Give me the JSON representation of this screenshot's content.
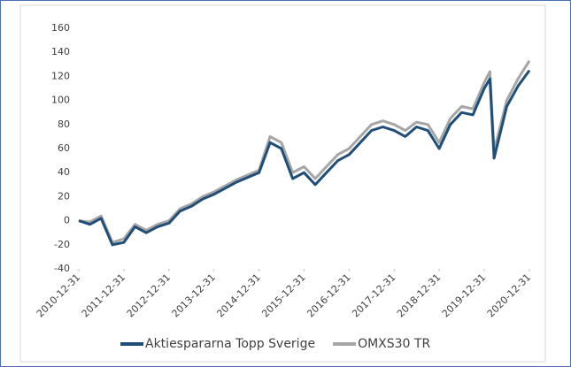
{
  "chart_data": {
    "type": "line",
    "x": [
      "2010-12-31",
      "2011-03-31",
      "2011-06-30",
      "2011-09-30",
      "2011-12-31",
      "2012-03-31",
      "2012-06-30",
      "2012-09-30",
      "2012-12-31",
      "2013-03-31",
      "2013-06-30",
      "2013-09-30",
      "2013-12-31",
      "2014-03-31",
      "2014-06-30",
      "2014-09-30",
      "2014-12-31",
      "2015-03-31",
      "2015-06-30",
      "2015-09-30",
      "2015-12-31",
      "2016-03-31",
      "2016-06-30",
      "2016-09-30",
      "2016-12-31",
      "2017-03-31",
      "2017-06-30",
      "2017-09-30",
      "2017-12-31",
      "2018-03-31",
      "2018-06-30",
      "2018-09-30",
      "2018-12-31",
      "2019-03-31",
      "2019-06-30",
      "2019-09-30",
      "2019-12-31",
      "2020-02-15",
      "2020-03-20",
      "2020-06-30",
      "2020-09-30",
      "2020-12-31"
    ],
    "series": [
      {
        "name": "Aktiespararna Topp Sverige",
        "color": "#1f4e79",
        "values": [
          0,
          -3,
          2,
          -20,
          -18,
          -5,
          -10,
          -5,
          -2,
          8,
          12,
          18,
          22,
          27,
          32,
          36,
          40,
          65,
          60,
          35,
          40,
          30,
          40,
          50,
          55,
          65,
          75,
          78,
          75,
          70,
          78,
          75,
          60,
          80,
          90,
          88,
          110,
          118,
          52,
          95,
          112,
          125
        ]
      },
      {
        "name": "OMXS30 TR",
        "color": "#a6a6a6",
        "values": [
          0,
          -1,
          4,
          -18,
          -15,
          -3,
          -8,
          -3,
          0,
          10,
          14,
          20,
          24,
          29,
          34,
          38,
          42,
          70,
          65,
          40,
          45,
          35,
          45,
          55,
          60,
          70,
          80,
          83,
          80,
          75,
          82,
          80,
          65,
          85,
          95,
          93,
          115,
          124,
          58,
          100,
          118,
          133
        ]
      }
    ],
    "xlim": [
      "2010-12-31",
      "2020-12-31"
    ],
    "xticks": [
      "2010-12-31",
      "2011-12-31",
      "2012-12-31",
      "2013-12-31",
      "2014-12-31",
      "2015-12-31",
      "2016-12-31",
      "2017-12-31",
      "2018-12-31",
      "2019-12-31",
      "2020-12-31"
    ],
    "ylim": [
      -40,
      160
    ],
    "yticks": [
      -40,
      -20,
      0,
      20,
      40,
      60,
      80,
      100,
      120,
      140,
      160
    ],
    "grid": false,
    "legend": "bottom"
  }
}
